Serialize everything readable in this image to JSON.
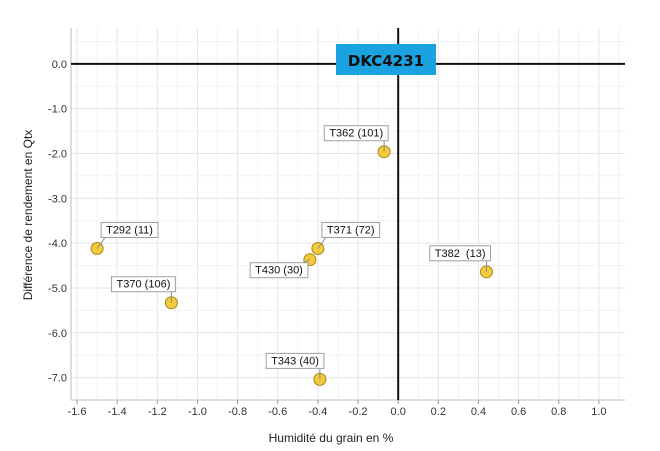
{
  "chart_data": {
    "type": "scatter",
    "title": "DKC4231",
    "xlabel": "Humidité du grain en %",
    "ylabel": "Différence de rendement en Qtx",
    "xlim": [
      -1.63,
      1.13
    ],
    "ylim": [
      -7.5,
      0.8
    ],
    "x_ticks": [
      -1.6,
      -1.4,
      -1.2,
      -1.0,
      -0.8,
      -0.6,
      -0.4,
      -0.2,
      0.0,
      0.2,
      0.4,
      0.6,
      0.8,
      1.0
    ],
    "x_tick_labels": [
      "-1.6",
      "-1.4",
      "-1.2",
      "-1.0",
      "-0.8",
      "-0.6",
      "-0.4",
      "-0.2",
      "0.0",
      "0.2",
      "0.4",
      "0.6",
      "0.8",
      "1.0"
    ],
    "y_ticks": [
      0,
      -1,
      -2,
      -3,
      -4,
      -5,
      -6,
      -7
    ],
    "y_tick_labels": [
      "0.0",
      "-1.0",
      "-2.0",
      "-3.0",
      "-4.0",
      "-5.0",
      "-6.0",
      "-7.0"
    ],
    "grid": true,
    "points": [
      {
        "label": "T292 (11)",
        "x": -1.5,
        "y": -4.12,
        "label_pos": "upper-right"
      },
      {
        "label": "T370 (106)",
        "x": -1.13,
        "y": -5.33,
        "label_pos": "upper-left"
      },
      {
        "label": "T362 (101)",
        "x": -0.07,
        "y": -1.96,
        "label_pos": "upper-left"
      },
      {
        "label": "T371 (72)",
        "x": -0.4,
        "y": -4.12,
        "label_pos": "upper-right"
      },
      {
        "label": "T430 (30)",
        "x": -0.44,
        "y": -4.37,
        "label_pos": "lower-left"
      },
      {
        "label": "T343 (40)",
        "x": -0.39,
        "y": -7.04,
        "label_pos": "upper-left"
      },
      {
        "label": "T382  (13)",
        "x": 0.44,
        "y": -4.64,
        "label_pos": "upper-left"
      }
    ]
  },
  "colors": {
    "point_fill": "#f2ca3c",
    "point_stroke": "#a6861f",
    "title_bg": "#1aa3e0",
    "grid": "#e6e6e6",
    "axis": "#111111"
  }
}
